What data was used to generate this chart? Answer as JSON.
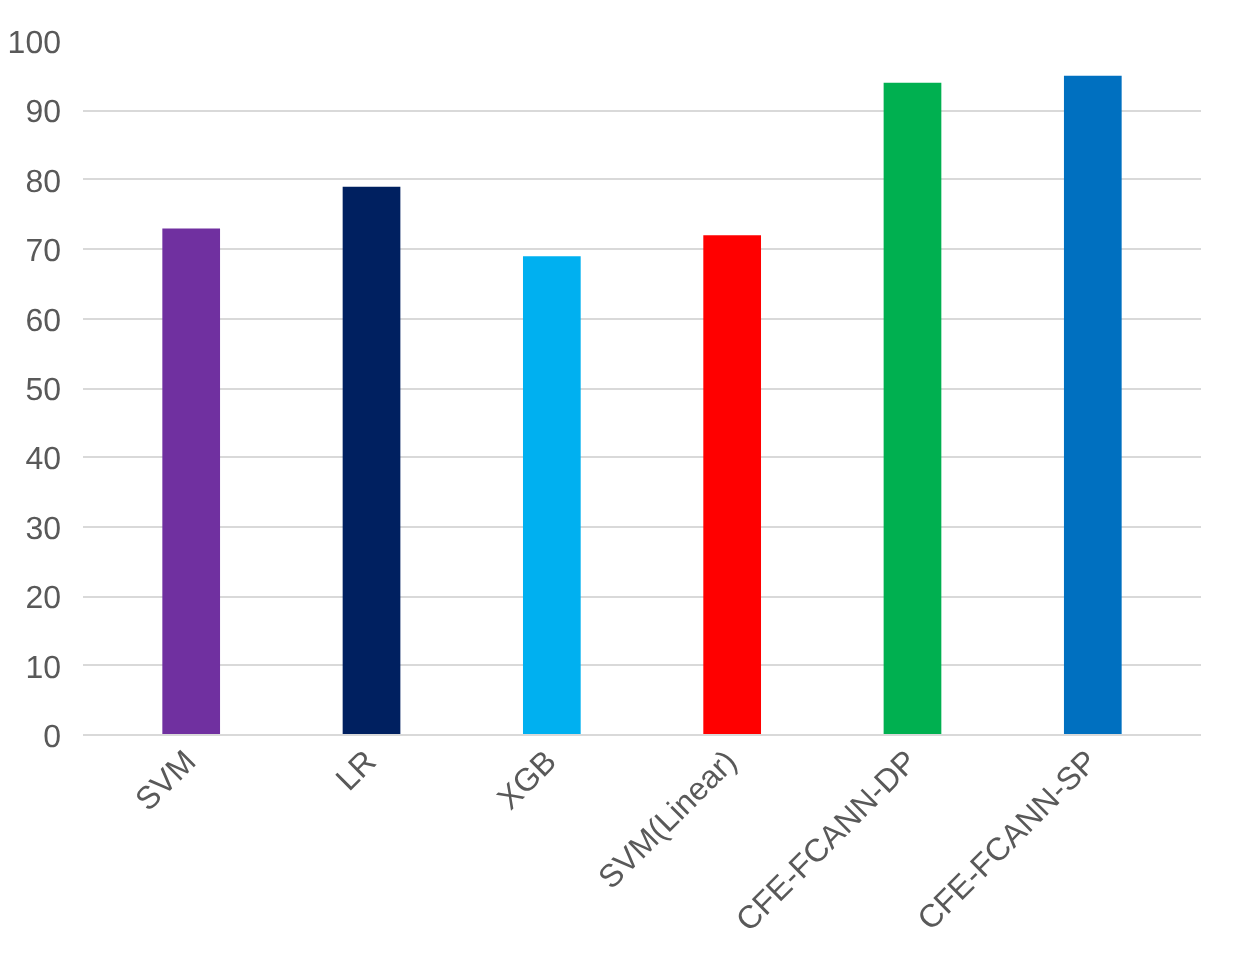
{
  "chart_data": {
    "type": "bar",
    "categories": [
      "SVM",
      "LR",
      "XGB",
      "SVM(Linear)",
      "CFE-FCANN-DP",
      "CFE-FCANN-SP"
    ],
    "values": [
      73,
      79,
      69,
      72,
      94,
      95
    ],
    "colors": [
      "#7030a0",
      "#002060",
      "#00b0f0",
      "#ff0000",
      "#00b050",
      "#0070c0"
    ],
    "ylim": [
      0,
      100
    ],
    "yticks": [
      0,
      10,
      20,
      30,
      40,
      50,
      60,
      70,
      80,
      90,
      100
    ],
    "grid": "y"
  }
}
